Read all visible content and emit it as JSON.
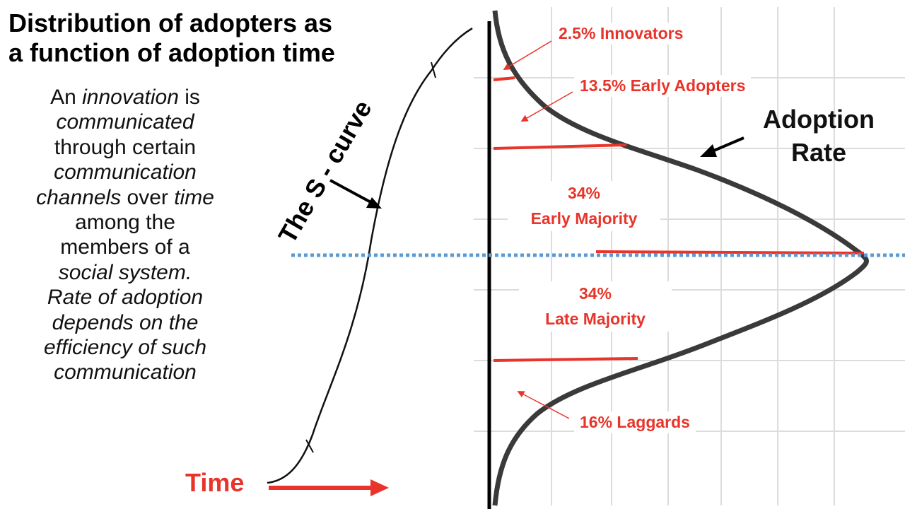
{
  "title_line1": "Distribution of adopters as",
  "title_line2": "a function of adoption time",
  "body": {
    "line1": {
      "text": "An ",
      "italic": "innovation",
      "tail": " is"
    },
    "line2": {
      "italic": "communicated"
    },
    "line3": {
      "text": "through certain"
    },
    "line4": {
      "italic": "communication"
    },
    "line5": {
      "italic": "channels",
      "text": " over ",
      "italic2": "time"
    },
    "line6": {
      "text": "among the"
    },
    "line7": {
      "text": "members of a"
    },
    "line8": {
      "italic": "social system."
    },
    "line9": {
      "italic": "Rate of adoption"
    },
    "line10": {
      "italic": "depends on the"
    },
    "line11": {
      "italic": "efficiency of  such"
    },
    "line12": {
      "italic": "communication"
    }
  },
  "s_curve_label": "The S - curve",
  "time_label": "Time",
  "adoption_rate_label": {
    "line1": "Adoption",
    "line2": "Rate"
  },
  "segments": {
    "innovators": "2.5%  Innovators",
    "early_adopters": "13.5%  Early Adopters",
    "early_majority_pct": "34%",
    "early_majority": "Early Majority",
    "late_majority_pct": "34%",
    "late_majority": "Late  Majority",
    "laggards": "16%  Laggards"
  },
  "colors": {
    "accent_red": "#e8342a",
    "guide_blue": "#5b9bd5",
    "curve": "#333333",
    "axis": "#000000",
    "grid": "#dcdcdc"
  }
}
